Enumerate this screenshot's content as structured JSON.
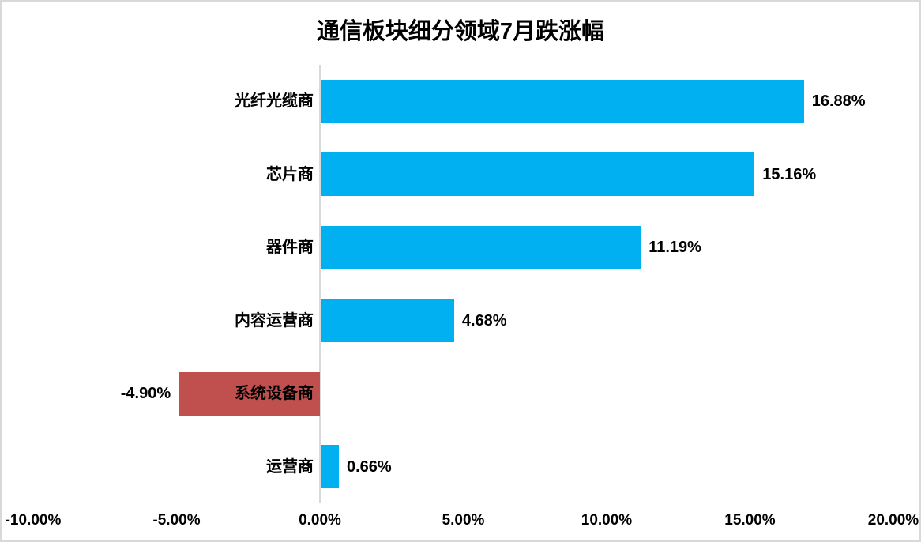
{
  "chart_data": {
    "type": "bar",
    "orientation": "horizontal",
    "title": "通信板块细分领域7月跌涨幅",
    "categories": [
      "光纤光缆商",
      "芯片商",
      "器件商",
      "内容运营商",
      "系统设备商",
      "运营商"
    ],
    "values": [
      16.88,
      15.16,
      11.19,
      4.68,
      -4.9,
      0.66
    ],
    "value_labels": [
      "16.88%",
      "15.16%",
      "11.19%",
      "4.68%",
      "-4.90%",
      "0.66%"
    ],
    "positive_bar_color": "#00B0F0",
    "negative_bar_color": "#C0504D",
    "x_axis": {
      "min": -10,
      "max": 20,
      "tick_values": [
        -10,
        -5,
        0,
        5,
        10,
        15,
        20
      ],
      "tick_labels": [
        "-10.00%",
        "-5.00%",
        "0.00%",
        "5.00%",
        "10.00%",
        "15.00%",
        "20.00%"
      ]
    },
    "grid": "off",
    "legend": "none",
    "axis_line_color": "#D9D9D9",
    "text_color": "#000000",
    "background_color": "#FFFFFF",
    "border_color": "#D9D9D9"
  }
}
